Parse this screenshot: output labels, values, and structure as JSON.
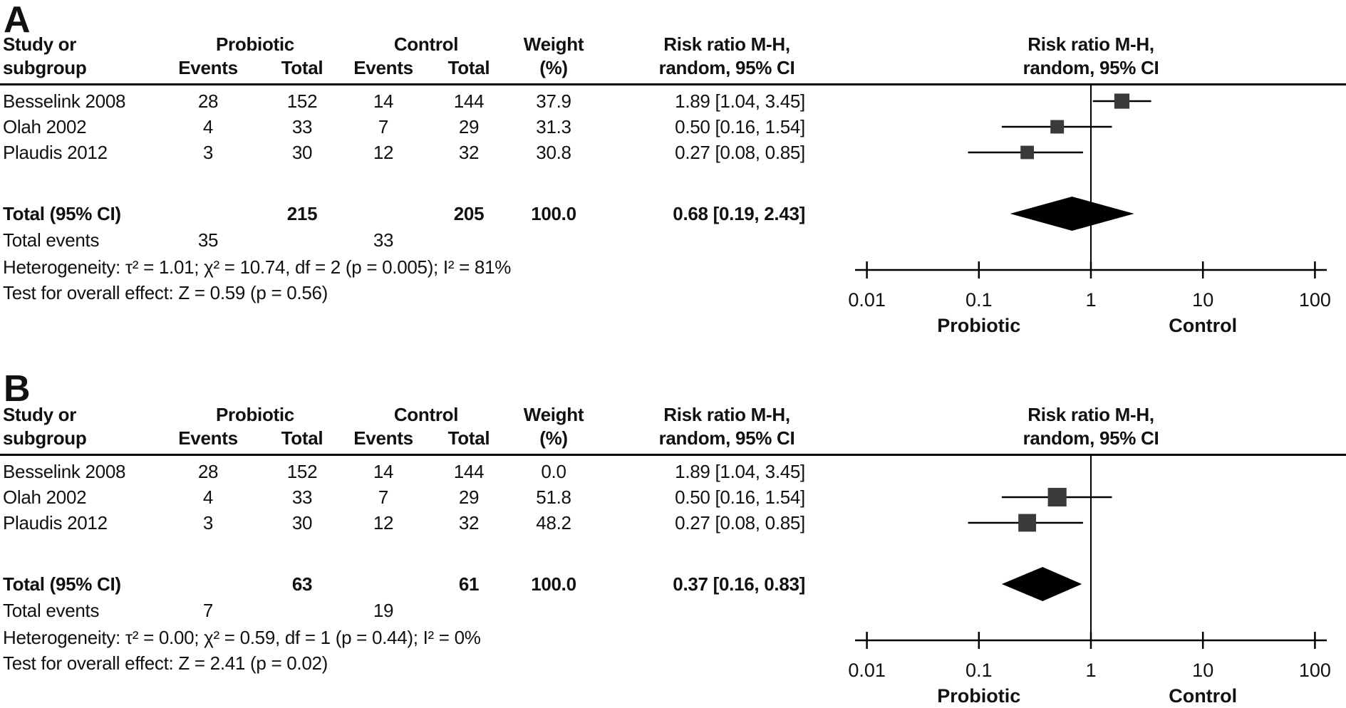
{
  "panel_labels": [
    "A",
    "B"
  ],
  "columns": {
    "study_line1": "Study or",
    "study_line2": "subgroup",
    "probiotic_group": "Probiotic",
    "control_group": "Control",
    "events": "Events",
    "total": "Total",
    "weight_line1": "Weight",
    "weight_line2": "(%)",
    "rr_line1": "Risk ratio M-H,",
    "rr_line2": "random, 95% CI"
  },
  "axis": {
    "tick_labels": [
      "0.01",
      "0.1",
      "1",
      "10",
      "100"
    ],
    "tick_values": [
      0.01,
      0.1,
      1,
      10,
      100
    ],
    "left_group_label": "Probiotic",
    "right_group_label": "Control"
  },
  "colors": {
    "square": "#3a3a3a",
    "diamond": "#000000",
    "line": "#000000",
    "text": "#111111"
  },
  "chart_data": [
    {
      "type": "forest",
      "panel": "A",
      "plot_title": [
        "Risk ratio M-H,",
        "random, 95% CI"
      ],
      "effect_measure": "Risk ratio M-H, random, 95% CI",
      "x_scale": "log10",
      "x_range": [
        0.01,
        100
      ],
      "x_ticks": [
        0.01,
        0.1,
        1,
        10,
        100
      ],
      "studies": [
        {
          "name": "Besselink 2008",
          "probiotic_events": "28",
          "probiotic_total": "152",
          "control_events": "14",
          "control_total": "144",
          "weight": "37.9",
          "weight_pct": 37.9,
          "rr": 1.89,
          "ci_low": 1.04,
          "ci_high": 3.45,
          "rr_label": "1.89 [1.04, 3.45]"
        },
        {
          "name": "Olah 2002",
          "probiotic_events": "4",
          "probiotic_total": "33",
          "control_events": "7",
          "control_total": "29",
          "weight": "31.3",
          "weight_pct": 31.3,
          "rr": 0.5,
          "ci_low": 0.16,
          "ci_high": 1.54,
          "rr_label": "0.50 [0.16, 1.54]"
        },
        {
          "name": "Plaudis 2012",
          "probiotic_events": "3",
          "probiotic_total": "30",
          "control_events": "12",
          "control_total": "32",
          "weight": "30.8",
          "weight_pct": 30.8,
          "rr": 0.27,
          "ci_low": 0.08,
          "ci_high": 0.85,
          "rr_label": "0.27 [0.08, 0.85]"
        }
      ],
      "total": {
        "label": "Total (95% CI)",
        "probiotic_total": "215",
        "control_total": "205",
        "weight": "100.0",
        "rr": 0.68,
        "ci_low": 0.19,
        "ci_high": 2.43,
        "rr_label": "0.68 [0.19, 2.43]"
      },
      "total_events": {
        "label": "Total events",
        "probiotic": "35",
        "control": "33"
      },
      "heterogeneity": "Heterogeneity: τ² = 1.01; χ² = 10.74, df = 2 (p = 0.005); I² = 81%",
      "overall_effect": "Test for overall effect: Z = 0.59 (p = 0.56)"
    },
    {
      "type": "forest",
      "panel": "B",
      "plot_title": [
        "Risk ratio M-H,",
        "random, 95% CI"
      ],
      "effect_measure": "Risk ratio M-H, random, 95% CI",
      "x_scale": "log10",
      "x_range": [
        0.01,
        100
      ],
      "x_ticks": [
        0.01,
        0.1,
        1,
        10,
        100
      ],
      "studies": [
        {
          "name": "Besselink 2008",
          "probiotic_events": "28",
          "probiotic_total": "152",
          "control_events": "14",
          "control_total": "144",
          "weight": "0.0",
          "weight_pct": 0.0,
          "rr": 1.89,
          "ci_low": 1.04,
          "ci_high": 3.45,
          "rr_label": "1.89 [1.04, 3.45]"
        },
        {
          "name": "Olah 2002",
          "probiotic_events": "4",
          "probiotic_total": "33",
          "control_events": "7",
          "control_total": "29",
          "weight": "51.8",
          "weight_pct": 51.8,
          "rr": 0.5,
          "ci_low": 0.16,
          "ci_high": 1.54,
          "rr_label": "0.50 [0.16, 1.54]"
        },
        {
          "name": "Plaudis 2012",
          "probiotic_events": "3",
          "probiotic_total": "30",
          "control_events": "12",
          "control_total": "32",
          "weight": "48.2",
          "weight_pct": 48.2,
          "rr": 0.27,
          "ci_low": 0.08,
          "ci_high": 0.85,
          "rr_label": "0.27 [0.08, 0.85]"
        }
      ],
      "total": {
        "label": "Total (95% CI)",
        "probiotic_total": "63",
        "control_total": "61",
        "weight": "100.0",
        "rr": 0.37,
        "ci_low": 0.16,
        "ci_high": 0.83,
        "rr_label": "0.37 [0.16, 0.83]"
      },
      "total_events": {
        "label": "Total events",
        "probiotic": "7",
        "control": "19"
      },
      "heterogeneity": "Heterogeneity: τ² = 0.00; χ² = 0.59, df = 1 (p = 0.44); I² = 0%",
      "overall_effect": "Test for overall effect: Z = 2.41 (p = 0.02)"
    }
  ]
}
